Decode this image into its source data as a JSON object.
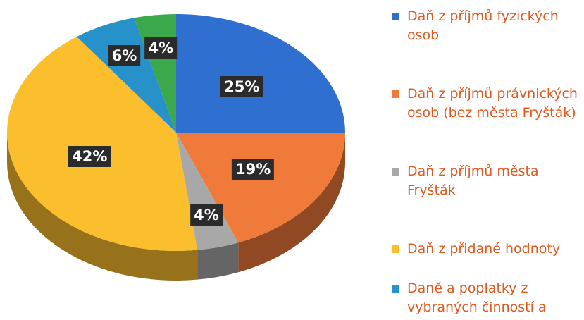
{
  "chart_data": {
    "type": "pie",
    "categories": [
      "Daň z příjmů fyzických osob",
      "Daň z příjmů právnických osob (bez města Fryšták)",
      "Daň z příjmů města Fryšták",
      "Daň z přidané hodnoty",
      "Daně a poplatky z vybraných činností a",
      null
    ],
    "values": [
      25,
      19,
      4,
      42,
      6,
      4
    ],
    "value_labels": [
      "25%",
      "19%",
      "4%",
      "42%",
      "6%",
      "4%"
    ],
    "colors": [
      "#2f6fd0",
      "#f07a3a",
      "#a8a8a8",
      "#fbbe2c",
      "#2792c9",
      "#3ba84c"
    ],
    "legend": "right"
  }
}
